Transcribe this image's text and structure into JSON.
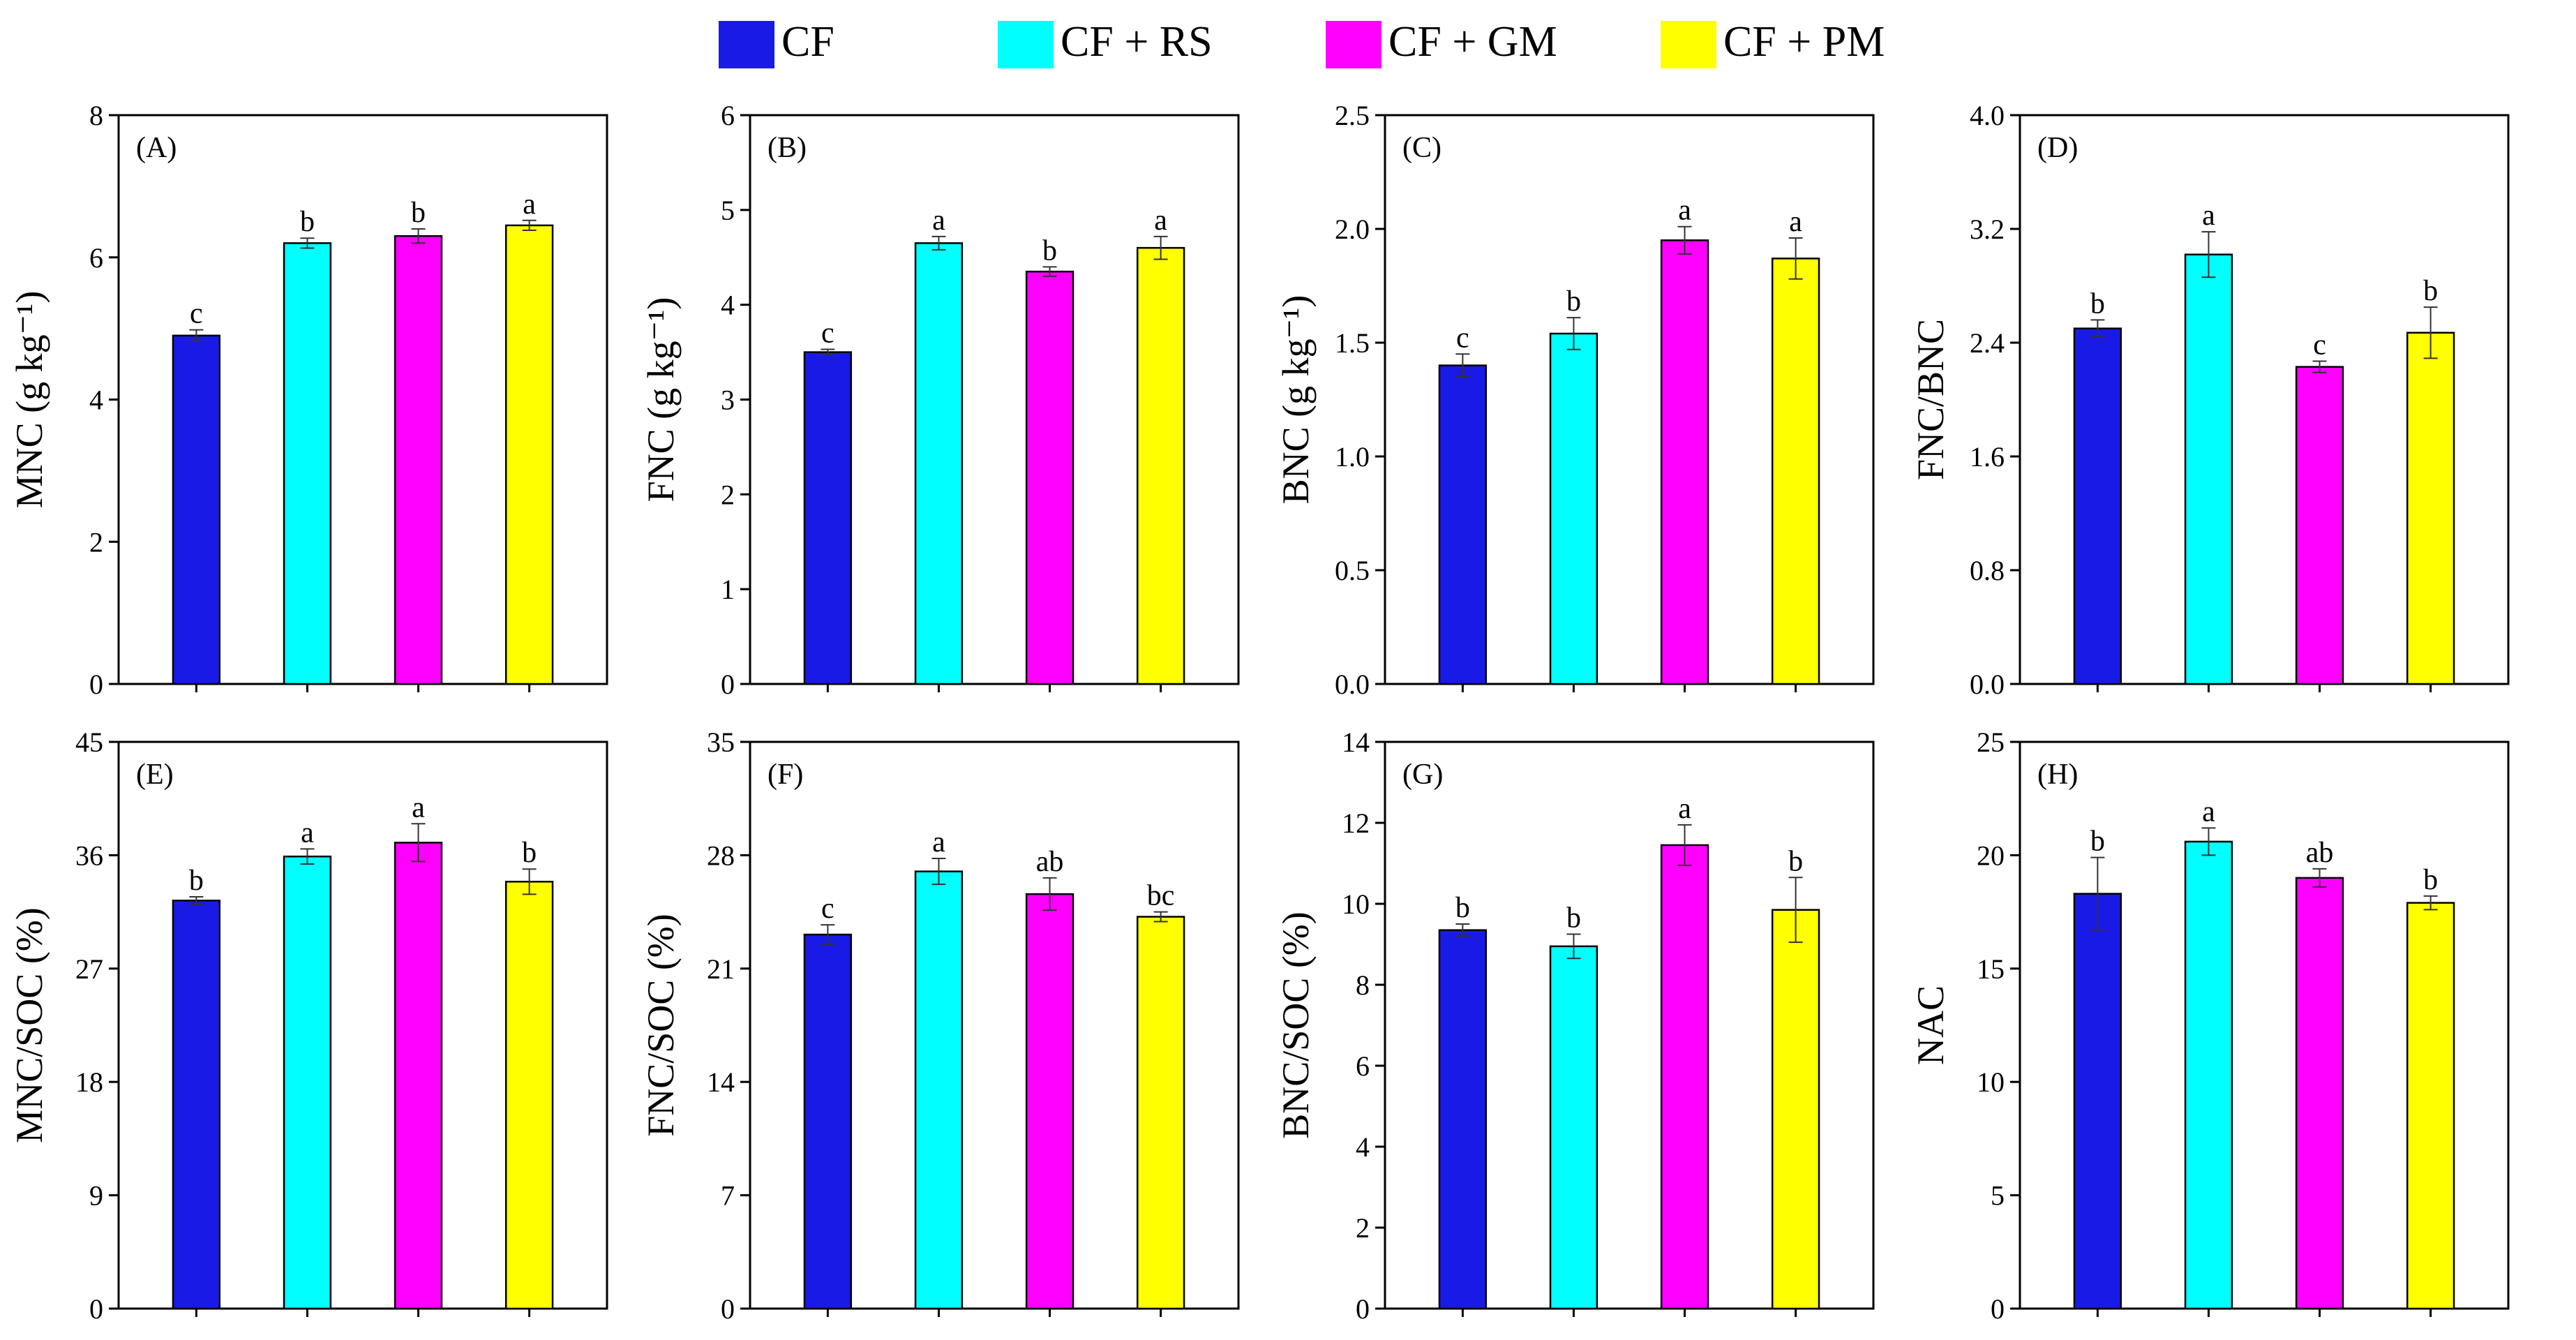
{
  "legend": {
    "items": [
      {
        "label": "CF",
        "color": "#1a1ae6"
      },
      {
        "label": "CF + RS",
        "color": "#00ffff"
      },
      {
        "label": "CF + GM",
        "color": "#ff00ff"
      },
      {
        "label": "CF + PM",
        "color": "#ffff00"
      }
    ]
  },
  "chart_data": [
    {
      "type": "bar",
      "panel": "(A)",
      "ylabel": "MNC (g kg⁻¹)",
      "ylim": [
        0,
        8
      ],
      "yticks": [
        "0",
        "2",
        "4",
        "6",
        "8"
      ],
      "categories": [
        "CF",
        "CF + RS",
        "CF + GM",
        "CF + PM"
      ],
      "values": [
        4.9,
        6.2,
        6.3,
        6.45
      ],
      "errors": [
        0.08,
        0.07,
        0.1,
        0.07
      ],
      "letters": [
        "c",
        "b",
        "b",
        "a"
      ]
    },
    {
      "type": "bar",
      "panel": "(B)",
      "ylabel": "FNC (g kg⁻¹)",
      "ylim": [
        0,
        6
      ],
      "yticks": [
        "0",
        "1",
        "2",
        "3",
        "4",
        "5",
        "6"
      ],
      "categories": [
        "CF",
        "CF + RS",
        "CF + GM",
        "CF + PM"
      ],
      "values": [
        3.5,
        4.65,
        4.35,
        4.6
      ],
      "errors": [
        0.03,
        0.07,
        0.05,
        0.12
      ],
      "letters": [
        "c",
        "a",
        "b",
        "a"
      ]
    },
    {
      "type": "bar",
      "panel": "(C)",
      "ylabel": "BNC (g kg⁻¹)",
      "ylim": [
        0,
        2.5
      ],
      "yticks": [
        "0.0",
        "0.5",
        "1.0",
        "1.5",
        "2.0",
        "2.5"
      ],
      "categories": [
        "CF",
        "CF + RS",
        "CF + GM",
        "CF + PM"
      ],
      "values": [
        1.4,
        1.54,
        1.95,
        1.87
      ],
      "errors": [
        0.05,
        0.07,
        0.06,
        0.09
      ],
      "letters": [
        "c",
        "b",
        "a",
        "a"
      ]
    },
    {
      "type": "bar",
      "panel": "(D)",
      "ylabel": "FNC/BNC",
      "ylim": [
        0,
        4
      ],
      "yticks": [
        "0.0",
        "0.8",
        "1.6",
        "2.4",
        "3.2",
        "4.0"
      ],
      "categories": [
        "CF",
        "CF + RS",
        "CF + GM",
        "CF + PM"
      ],
      "values": [
        2.5,
        3.02,
        2.23,
        2.47
      ],
      "errors": [
        0.06,
        0.16,
        0.04,
        0.18
      ],
      "letters": [
        "b",
        "a",
        "c",
        "b"
      ]
    },
    {
      "type": "bar",
      "panel": "(E)",
      "ylabel": "MNC/SOC (%)",
      "ylim": [
        0,
        45
      ],
      "yticks": [
        "0",
        "9",
        "18",
        "27",
        "36",
        "45"
      ],
      "categories": [
        "CF",
        "CF + RS",
        "CF + GM",
        "CF + PM"
      ],
      "values": [
        32.4,
        35.9,
        37.0,
        33.9
      ],
      "errors": [
        0.3,
        0.6,
        1.5,
        1.0
      ],
      "letters": [
        "b",
        "a",
        "a",
        "b"
      ]
    },
    {
      "type": "bar",
      "panel": "(F)",
      "ylabel": "FNC/SOC (%)",
      "ylim": [
        0,
        35
      ],
      "yticks": [
        "0",
        "7",
        "14",
        "21",
        "28",
        "35"
      ],
      "categories": [
        "CF",
        "CF + RS",
        "CF + GM",
        "CF + PM"
      ],
      "values": [
        23.1,
        27.0,
        25.6,
        24.2
      ],
      "errors": [
        0.6,
        0.8,
        1.0,
        0.3
      ],
      "letters": [
        "c",
        "a",
        "ab",
        "bc"
      ]
    },
    {
      "type": "bar",
      "panel": "(G)",
      "ylabel": "BNC/SOC (%)",
      "ylim": [
        0,
        14
      ],
      "yticks": [
        "0",
        "2",
        "4",
        "6",
        "8",
        "10",
        "12",
        "14"
      ],
      "categories": [
        "CF",
        "CF + RS",
        "CF + GM",
        "CF + PM"
      ],
      "values": [
        9.35,
        8.95,
        11.45,
        9.85
      ],
      "errors": [
        0.15,
        0.3,
        0.5,
        0.8
      ],
      "letters": [
        "b",
        "b",
        "a",
        "b"
      ]
    },
    {
      "type": "bar",
      "panel": "(H)",
      "ylabel": "NAC",
      "ylim": [
        0,
        25
      ],
      "yticks": [
        "0",
        "5",
        "10",
        "15",
        "20",
        "25"
      ],
      "categories": [
        "CF",
        "CF + RS",
        "CF + GM",
        "CF + PM"
      ],
      "values": [
        18.3,
        20.6,
        19.0,
        17.9
      ],
      "errors": [
        1.6,
        0.6,
        0.4,
        0.3
      ],
      "letters": [
        "b",
        "a",
        "ab",
        "b"
      ]
    }
  ]
}
